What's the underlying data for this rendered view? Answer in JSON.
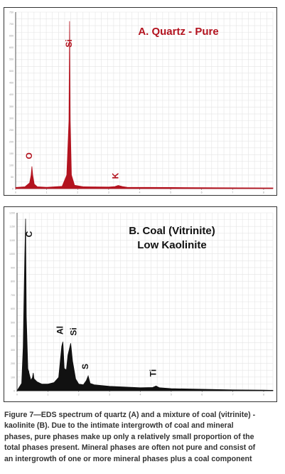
{
  "charts": {
    "a": {
      "title": "A. Quartz - Pure",
      "color": "#b3131f",
      "y_ticks": [
        "750",
        "700",
        "650",
        "600",
        "550",
        "500",
        "450",
        "400",
        "350",
        "300",
        "250",
        "200",
        "150",
        "100",
        "50",
        "0"
      ],
      "x_ticks": [
        "0",
        "1",
        "2",
        "3",
        "4",
        "5",
        "6",
        "7",
        "8"
      ],
      "peak_labels": [
        "O",
        "Si",
        "K"
      ]
    },
    "b": {
      "title_line1": "B. Coal  (Vitrinite)",
      "title_line2": "Low Kaolinite",
      "color": "#111111",
      "y_ticks": [
        "1200",
        "1150",
        "1100",
        "1000",
        "900",
        "800",
        "700",
        "600",
        "500",
        "400",
        "300",
        "200",
        "100",
        "0"
      ],
      "x_ticks": [
        "0",
        "1",
        "2",
        "3",
        "4",
        "5",
        "6",
        "7",
        "8"
      ],
      "peak_labels": [
        "C",
        "O",
        "Al",
        "Si",
        "S",
        "Ti"
      ]
    }
  },
  "chart_data": [
    {
      "type": "line",
      "title": "A. Quartz - Pure",
      "xlabel": "",
      "ylabel": "",
      "xlim": [
        0,
        8.3
      ],
      "ylim": [
        0,
        780
      ],
      "grid": true,
      "series": [
        {
          "x": [
            0.0,
            0.3,
            0.45,
            0.5,
            0.525,
            0.55,
            0.6,
            0.7,
            1.0,
            1.5,
            1.65,
            1.72,
            1.74,
            1.76,
            1.8,
            1.9,
            2.2,
            3.0,
            3.2,
            3.31,
            3.45,
            3.6,
            5.0,
            6.5,
            8.0,
            8.3
          ],
          "y": [
            5,
            8,
            25,
            60,
            98,
            60,
            20,
            8,
            6,
            10,
            60,
            300,
            740,
            300,
            60,
            15,
            8,
            7,
            9,
            14,
            9,
            6,
            5,
            4,
            3,
            3
          ]
        }
      ],
      "annotations": [
        {
          "text": "O",
          "x": 0.525,
          "y": 98
        },
        {
          "text": "Si",
          "x": 1.74,
          "y": 740
        },
        {
          "text": "K",
          "x": 3.31,
          "y": 14
        }
      ]
    },
    {
      "type": "line",
      "title": "B. Coal  (Vitrinite)\nLow Kaolinite",
      "xlabel": "",
      "ylabel": "",
      "xlim": [
        0,
        8.3
      ],
      "ylim": [
        0,
        1200
      ],
      "grid": true,
      "series": [
        {
          "x": [
            0.0,
            0.15,
            0.2,
            0.25,
            0.277,
            0.3,
            0.35,
            0.45,
            0.5,
            0.525,
            0.55,
            0.65,
            0.8,
            1.0,
            1.2,
            1.35,
            1.45,
            1.487,
            1.53,
            1.6,
            1.65,
            1.74,
            1.8,
            1.9,
            2.0,
            2.15,
            2.25,
            2.307,
            2.37,
            2.5,
            3.0,
            4.0,
            4.4,
            4.51,
            4.62,
            5.0,
            6.0,
            7.0,
            8.0,
            8.3
          ],
          "y": [
            0,
            50,
            300,
            900,
            1160,
            500,
            150,
            70,
            90,
            120,
            80,
            60,
            45,
            45,
            55,
            90,
            300,
            330,
            150,
            140,
            240,
            320,
            200,
            80,
            45,
            40,
            70,
            100,
            50,
            40,
            30,
            20,
            22,
            32,
            20,
            14,
            10,
            6,
            4,
            3
          ]
        }
      ],
      "annotations": [
        {
          "text": "C",
          "x": 0.277,
          "y": 1160
        },
        {
          "text": "O",
          "x": 0.525,
          "y": 120
        },
        {
          "text": "Al",
          "x": 1.487,
          "y": 330
        },
        {
          "text": "Si",
          "x": 1.74,
          "y": 320
        },
        {
          "text": "S",
          "x": 2.307,
          "y": 100
        },
        {
          "text": "Ti",
          "x": 4.51,
          "y": 32
        }
      ]
    }
  ],
  "caption_lines": [
    "Figure 7—EDS spectrum of quartz (A) and a mixture of coal (vitrinite) -",
    "kaolinite (B). Due to the intimate intergrowth of coal and mineral",
    "phases, pure phases make up only a relatively small proportion of the",
    "total phases present. Mineral phases are often not pure and consist of",
    "an intergrowth of one or more mineral phases plus a coal component"
  ]
}
